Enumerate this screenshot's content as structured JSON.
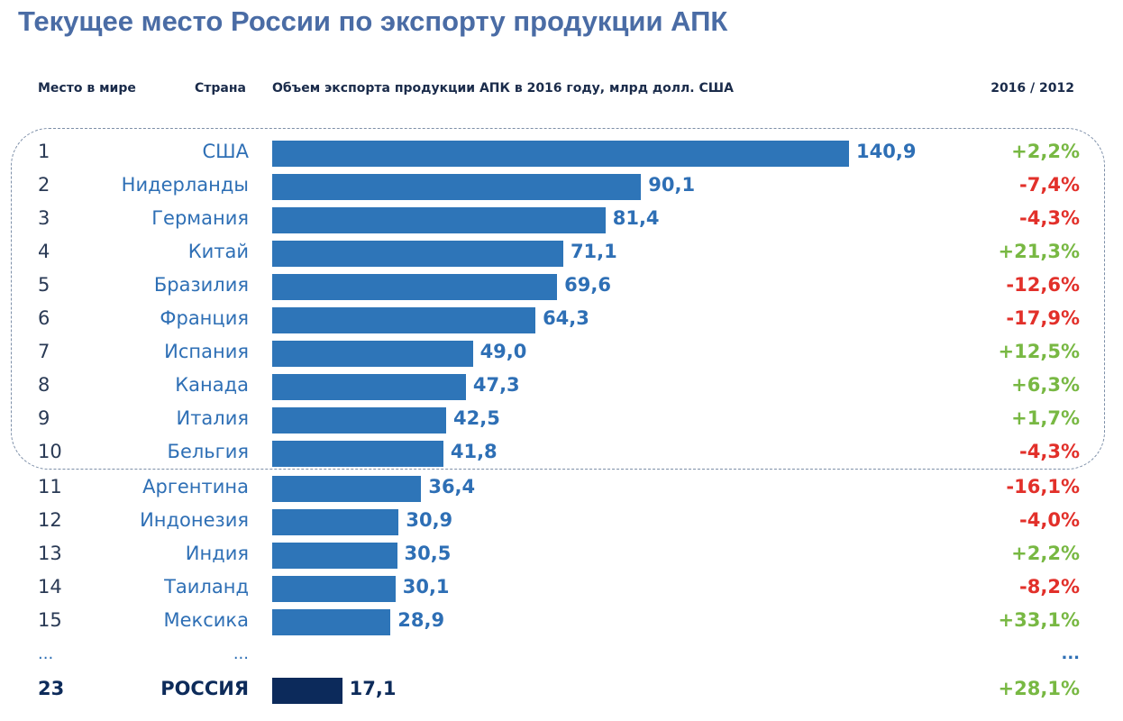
{
  "title": "Текущее место России  по экспорту продукции АПК",
  "chart_data": {
    "type": "bar",
    "orientation": "horizontal",
    "title": "Текущее место России  по экспорту продукции АПК",
    "headers": {
      "rank": "Место в мире",
      "country": "Страна",
      "value": "Объем экспорта продукции АПК в 2016 году, млрд долл. США",
      "change": "2016 / 2012"
    },
    "rows": [
      {
        "rank": "1",
        "country": "США",
        "value": 140.9,
        "value_label": "140,9",
        "change": "+2,2%"
      },
      {
        "rank": "2",
        "country": "Нидерланды",
        "value": 90.1,
        "value_label": "90,1",
        "change": "-7,4%"
      },
      {
        "rank": "3",
        "country": "Германия",
        "value": 81.4,
        "value_label": "81,4",
        "change": "-4,3%"
      },
      {
        "rank": "4",
        "country": "Китай",
        "value": 71.1,
        "value_label": "71,1",
        "change": "+21,3%"
      },
      {
        "rank": "5",
        "country": "Бразилия",
        "value": 69.6,
        "value_label": "69,6",
        "change": "-12,6%"
      },
      {
        "rank": "6",
        "country": "Франция",
        "value": 64.3,
        "value_label": "64,3",
        "change": "-17,9%"
      },
      {
        "rank": "7",
        "country": "Испания",
        "value": 49.0,
        "value_label": "49,0",
        "change": "+12,5%"
      },
      {
        "rank": "8",
        "country": "Канада",
        "value": 47.3,
        "value_label": "47,3",
        "change": "+6,3%"
      },
      {
        "rank": "9",
        "country": "Италия",
        "value": 42.5,
        "value_label": "42,5",
        "change": "+1,7%"
      },
      {
        "rank": "10",
        "country": "Бельгия",
        "value": 41.8,
        "value_label": "41,8",
        "change": "-4,3%"
      },
      {
        "rank": "11",
        "country": "Аргентина",
        "value": 36.4,
        "value_label": "36,4",
        "change": "-16,1%"
      },
      {
        "rank": "12",
        "country": "Индонезия",
        "value": 30.9,
        "value_label": "30,9",
        "change": "-4,0%"
      },
      {
        "rank": "13",
        "country": "Индия",
        "value": 30.5,
        "value_label": "30,5",
        "change": "+2,2%"
      },
      {
        "rank": "14",
        "country": "Таиланд",
        "value": 30.1,
        "value_label": "30,1",
        "change": "-8,2%"
      },
      {
        "rank": "15",
        "country": "Мексика",
        "value": 28.9,
        "value_label": "28,9",
        "change": "+33,1%"
      }
    ],
    "ellipsis": "...",
    "highlight": {
      "rank": "23",
      "country": "РОССИЯ",
      "value": 17.1,
      "value_label": "17,1",
      "change": "+28,1%"
    },
    "colors": {
      "bar": "#2e75b8",
      "highlight_bar": "#0c2a5b",
      "positive": "#78b843",
      "negative": "#e2302a"
    },
    "xlim": [
      0,
      140.9
    ]
  }
}
